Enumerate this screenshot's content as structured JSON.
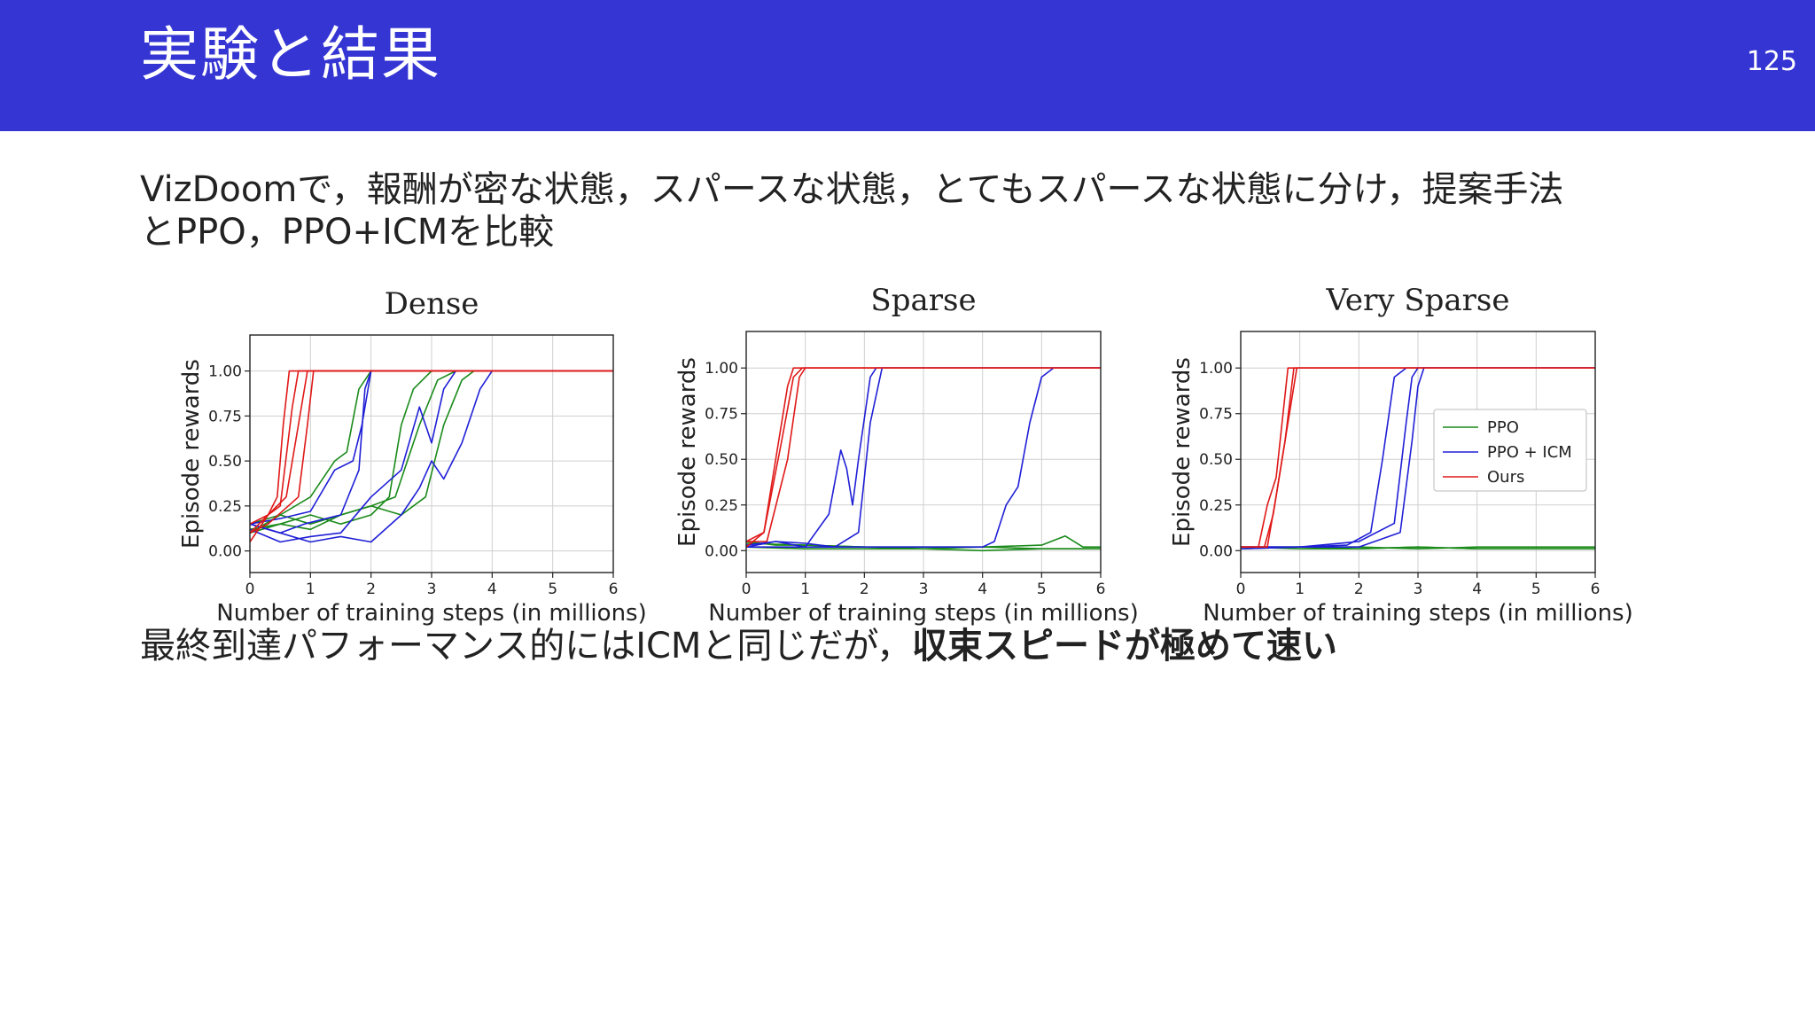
{
  "slide": {
    "title": "実験と結果",
    "page_number": "125",
    "intro_line1": "VizDoomで，報酬が密な状態，スパースな状態，とてもスパースな状態に分け，提案手法",
    "intro_line2": "とPPO，PPO+ICMを比較",
    "conclusion_plain": "最終到達パフォーマンス的にはICMと同じだが，",
    "conclusion_bold": "収束スピードが極めて速い"
  },
  "colors": {
    "header": "#3535d4",
    "PPO": "#1a8a1a",
    "PPO + ICM": "#1f1fd6",
    "Ours": "#e01818"
  },
  "chart_data": [
    {
      "type": "line",
      "title": "Dense",
      "xlabel": "Number of training steps (in millions)",
      "ylabel": "Episode rewards",
      "xlim": [
        0,
        6
      ],
      "ylim": [
        -0.12,
        1.2
      ],
      "xticks": [
        "0",
        "1",
        "2",
        "3",
        "4",
        "5",
        "6"
      ],
      "yticks": [
        "0.00",
        "0.25",
        "0.50",
        "0.75",
        "1.00"
      ],
      "grid": true,
      "legend": "none",
      "series": [
        {
          "group": "Ours",
          "x": [
            0,
            0.3,
            0.45,
            0.55,
            0.65,
            6
          ],
          "y": [
            0.05,
            0.2,
            0.3,
            0.7,
            1.0,
            1.0
          ]
        },
        {
          "group": "Ours",
          "x": [
            0,
            0.3,
            0.5,
            0.7,
            0.8,
            6
          ],
          "y": [
            0.1,
            0.2,
            0.25,
            0.8,
            1.0,
            1.0
          ]
        },
        {
          "group": "Ours",
          "x": [
            0,
            0.3,
            0.6,
            0.8,
            0.95,
            6
          ],
          "y": [
            0.15,
            0.2,
            0.3,
            0.7,
            1.0,
            1.0
          ]
        },
        {
          "group": "Ours",
          "x": [
            0,
            0.3,
            0.8,
            0.95,
            1.05,
            6
          ],
          "y": [
            0.1,
            0.15,
            0.3,
            0.7,
            1.0,
            1.0
          ]
        },
        {
          "group": "PPO + ICM",
          "x": [
            0,
            0.5,
            1.0,
            1.4,
            1.7,
            1.85,
            2.0,
            6
          ],
          "y": [
            0.15,
            0.18,
            0.22,
            0.45,
            0.5,
            0.7,
            1.0,
            1.0
          ]
        },
        {
          "group": "PPO + ICM",
          "x": [
            0,
            0.5,
            0.9,
            1.5,
            1.8,
            1.9,
            2.0,
            2.3,
            6
          ],
          "y": [
            0.15,
            0.1,
            0.15,
            0.2,
            0.45,
            0.9,
            1.0,
            1.0,
            1.0
          ]
        },
        {
          "group": "PPO + ICM",
          "x": [
            0,
            0.5,
            1.0,
            1.5,
            2.0,
            2.5,
            2.8,
            3.0,
            3.2,
            3.4,
            6
          ],
          "y": [
            0.12,
            0.05,
            0.08,
            0.1,
            0.3,
            0.45,
            0.8,
            0.6,
            0.9,
            1.0,
            1.0
          ]
        },
        {
          "group": "PPO + ICM",
          "x": [
            0,
            0.5,
            1.0,
            1.5,
            2.0,
            2.5,
            2.8,
            3.0,
            3.2,
            3.5,
            3.8,
            4.0,
            4.2,
            6
          ],
          "y": [
            0.15,
            0.1,
            0.05,
            0.08,
            0.05,
            0.2,
            0.35,
            0.5,
            0.4,
            0.6,
            0.9,
            1.0,
            1.0,
            1.0
          ]
        },
        {
          "group": "PPO",
          "x": [
            0,
            0.5,
            1.0,
            1.4,
            1.6,
            1.8,
            2.0,
            6
          ],
          "y": [
            0.15,
            0.2,
            0.3,
            0.5,
            0.55,
            0.9,
            1.0,
            1.0
          ]
        },
        {
          "group": "PPO",
          "x": [
            0,
            0.5,
            1.0,
            1.5,
            2.0,
            2.3,
            2.5,
            2.7,
            3.0,
            6
          ],
          "y": [
            0.12,
            0.15,
            0.2,
            0.15,
            0.2,
            0.3,
            0.7,
            0.9,
            1.0,
            1.0
          ]
        },
        {
          "group": "PPO",
          "x": [
            0,
            0.5,
            1.0,
            1.5,
            2.0,
            2.4,
            2.8,
            3.1,
            3.4,
            6
          ],
          "y": [
            0.1,
            0.15,
            0.12,
            0.2,
            0.25,
            0.3,
            0.7,
            0.95,
            1.0,
            1.0
          ]
        },
        {
          "group": "PPO",
          "x": [
            0,
            0.5,
            1.0,
            1.5,
            2.0,
            2.5,
            2.9,
            3.2,
            3.5,
            3.7,
            4.0,
            6
          ],
          "y": [
            0.1,
            0.2,
            0.15,
            0.2,
            0.25,
            0.2,
            0.3,
            0.7,
            0.95,
            1.0,
            1.0,
            1.0
          ]
        }
      ]
    },
    {
      "type": "line",
      "title": "Sparse",
      "xlabel": "Number of training steps (in millions)",
      "ylabel": "Episode rewards",
      "xlim": [
        0,
        6
      ],
      "ylim": [
        -0.12,
        1.2
      ],
      "xticks": [
        "0",
        "1",
        "2",
        "3",
        "4",
        "5",
        "6"
      ],
      "yticks": [
        "0.00",
        "0.25",
        "0.50",
        "0.75",
        "1.00"
      ],
      "grid": true,
      "legend": "none",
      "series": [
        {
          "group": "Ours",
          "x": [
            0,
            0.3,
            0.5,
            0.7,
            0.8,
            6
          ],
          "y": [
            0.05,
            0.1,
            0.5,
            0.9,
            1.0,
            1.0
          ]
        },
        {
          "group": "Ours",
          "x": [
            0,
            0.3,
            0.6,
            0.8,
            0.95,
            6
          ],
          "y": [
            0.02,
            0.1,
            0.6,
            0.95,
            1.0,
            1.0
          ]
        },
        {
          "group": "Ours",
          "x": [
            0,
            0.35,
            0.7,
            0.9,
            1.0,
            6
          ],
          "y": [
            0.05,
            0.05,
            0.5,
            0.95,
            1.0,
            1.0
          ]
        },
        {
          "group": "PPO + ICM",
          "x": [
            0,
            0.5,
            1.0,
            1.4,
            1.6,
            1.7,
            1.8,
            1.9,
            2.1,
            2.2,
            6
          ],
          "y": [
            0.02,
            0.05,
            0.02,
            0.2,
            0.55,
            0.45,
            0.25,
            0.5,
            0.95,
            1.0,
            1.0
          ]
        },
        {
          "group": "PPO + ICM",
          "x": [
            0,
            0.5,
            1.0,
            1.5,
            1.9,
            2.1,
            2.3,
            6
          ],
          "y": [
            0.03,
            0.05,
            0.04,
            0.02,
            0.1,
            0.7,
            1.0,
            1.0
          ]
        },
        {
          "group": "PPO + ICM",
          "x": [
            0,
            1,
            2,
            3,
            4,
            4.2,
            4.4,
            4.6,
            4.8,
            5.0,
            5.2,
            6
          ],
          "y": [
            0.02,
            0.02,
            0.02,
            0.02,
            0.02,
            0.05,
            0.25,
            0.35,
            0.7,
            0.95,
            1.0,
            1.0
          ]
        },
        {
          "group": "PPO",
          "x": [
            0,
            0.5,
            1,
            2,
            3,
            4,
            5,
            5.4,
            5.7,
            6
          ],
          "y": [
            0.05,
            0.03,
            0.03,
            0.02,
            0.02,
            0.02,
            0.03,
            0.08,
            0.02,
            0.02
          ]
        },
        {
          "group": "PPO",
          "x": [
            0,
            1,
            2,
            3,
            4,
            5,
            6
          ],
          "y": [
            0.04,
            0.03,
            0.02,
            0.01,
            0.02,
            0.01,
            0.01
          ]
        },
        {
          "group": "PPO",
          "x": [
            0,
            1,
            2,
            3,
            4,
            5,
            6
          ],
          "y": [
            0.02,
            0.01,
            0.01,
            0.01,
            0.0,
            0.01,
            0.01
          ]
        }
      ]
    },
    {
      "type": "line",
      "title": "Very Sparse",
      "xlabel": "Number of training steps (in millions)",
      "ylabel": "Episode rewards",
      "xlim": [
        0,
        6
      ],
      "ylim": [
        -0.12,
        1.2
      ],
      "xticks": [
        "0",
        "1",
        "2",
        "3",
        "4",
        "5",
        "6"
      ],
      "yticks": [
        "0.00",
        "0.25",
        "0.50",
        "0.75",
        "1.00"
      ],
      "grid": true,
      "legend": "top-right",
      "legend_entries": [
        "PPO",
        "PPO + ICM",
        "Ours"
      ],
      "series": [
        {
          "group": "Ours",
          "x": [
            0,
            0.3,
            0.45,
            0.6,
            0.8,
            6
          ],
          "y": [
            0.02,
            0.02,
            0.25,
            0.4,
            1.0,
            1.0
          ]
        },
        {
          "group": "Ours",
          "x": [
            0,
            0.4,
            0.55,
            0.75,
            0.9,
            6
          ],
          "y": [
            0.02,
            0.02,
            0.2,
            0.6,
            1.0,
            1.0
          ]
        },
        {
          "group": "Ours",
          "x": [
            0,
            0.45,
            0.6,
            0.8,
            0.95,
            6
          ],
          "y": [
            0.02,
            0.02,
            0.3,
            0.7,
            1.0,
            1.0
          ]
        },
        {
          "group": "PPO + ICM",
          "x": [
            0,
            1,
            1.8,
            2.2,
            2.4,
            2.6,
            2.8,
            6
          ],
          "y": [
            0.02,
            0.02,
            0.03,
            0.1,
            0.5,
            0.95,
            1.0,
            1.0
          ]
        },
        {
          "group": "PPO + ICM",
          "x": [
            0,
            1,
            2,
            2.6,
            2.8,
            2.9,
            3.0,
            6
          ],
          "y": [
            0.02,
            0.02,
            0.05,
            0.15,
            0.7,
            0.95,
            1.0,
            1.0
          ]
        },
        {
          "group": "PPO + ICM",
          "x": [
            0,
            1,
            2,
            2.7,
            2.9,
            3.0,
            3.1,
            6
          ],
          "y": [
            0.01,
            0.02,
            0.02,
            0.1,
            0.6,
            0.9,
            1.0,
            1.0
          ]
        },
        {
          "group": "PPO",
          "x": [
            0,
            1,
            2,
            3,
            4,
            5,
            6
          ],
          "y": [
            0.02,
            0.02,
            0.01,
            0.02,
            0.01,
            0.01,
            0.01
          ]
        },
        {
          "group": "PPO",
          "x": [
            0,
            1,
            2,
            3,
            4,
            5,
            6
          ],
          "y": [
            0.01,
            0.02,
            0.02,
            0.01,
            0.02,
            0.02,
            0.02
          ]
        },
        {
          "group": "PPO",
          "x": [
            0,
            1,
            2,
            3,
            4,
            5,
            6
          ],
          "y": [
            0.02,
            0.01,
            0.01,
            0.02,
            0.01,
            0.01,
            0.01
          ]
        }
      ]
    }
  ]
}
